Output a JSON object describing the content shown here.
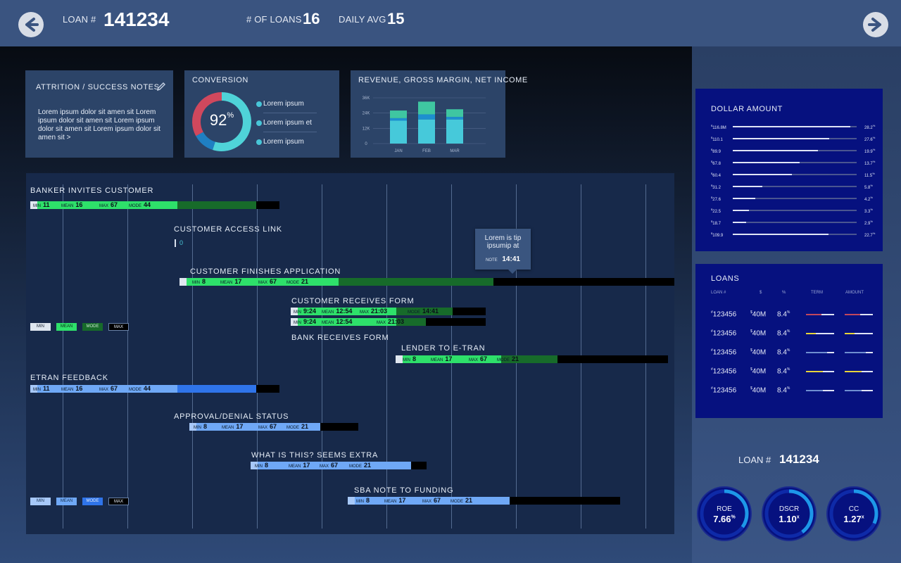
{
  "header": {
    "loan_label": "LOAN #",
    "loan_value": "141234",
    "num_loans_label": "# OF LOANS",
    "num_loans_value": "16",
    "daily_avg_label": "DAILY AVG",
    "daily_avg_value": "15"
  },
  "notes": {
    "title": "ATTRITION / SUCCESS NOTES",
    "text": "Lorem ipsum dolor sit amen sit Lorem ipsum dolor sit amen sit Lorem ipsum dolor sit amen sit Lorem ipsum dolor sit amen sit >"
  },
  "conversion": {
    "title": "CONVERSION",
    "value": "92",
    "unit": "%",
    "legend": [
      "Lorem ipsum",
      "Lorem ipsum et",
      "Lorem ipsum"
    ],
    "colors": [
      "#4fd3d8",
      "#1f7fc2",
      "#d0485d"
    ],
    "segments": [
      0.55,
      0.12,
      0.33
    ]
  },
  "revenue": {
    "title": "REVENUE, GROSS MARGIN, NET INCOME",
    "chart_data": {
      "type": "bar",
      "categories": [
        "JAN",
        "FEB",
        "MAR"
      ],
      "yticks": [
        "0",
        "12K",
        "24K",
        "36K"
      ],
      "ylim": [
        0,
        36
      ],
      "series": [
        {
          "values": [
            18,
            19,
            19
          ],
          "color": "#46c9da"
        },
        {
          "values": [
            2,
            4,
            2
          ],
          "color": "#1d8fcf"
        },
        {
          "values": [
            6,
            10,
            6
          ],
          "color": "#3fc6a1"
        }
      ]
    }
  },
  "gantt": {
    "stages": [
      {
        "title": "BANKER INVITES CUSTOMER",
        "theme": "green",
        "min": "11",
        "mean": "16",
        "max": "67",
        "mode": "44"
      },
      {
        "title": "CUSTOMER ACCESS LINK",
        "value": "0"
      },
      {
        "title": "CUSTOMER FINISHES APPLICATION",
        "theme": "green",
        "min": "8",
        "mean": "17",
        "max": "67",
        "mode": "21"
      },
      {
        "title": "CUSTOMER RECEIVES FORM",
        "theme": "green",
        "min": "9:24",
        "mean": "12:54",
        "max": "21:03",
        "mode": "14:41"
      },
      {
        "title": "BANK RECEIVES FORM",
        "theme": "green",
        "min": "9:24",
        "mean": "12:54",
        "max": "21:03"
      },
      {
        "title": "LENDER TO E-TRAN",
        "theme": "green",
        "min": "8",
        "mean": "17",
        "max": "67",
        "mode": "21"
      },
      {
        "title": "ETRAN FEEDBACK",
        "theme": "blue",
        "min": "11",
        "mean": "16",
        "max": "67",
        "mode": "44"
      },
      {
        "title": "APPROVAL/DENIAL STATUS",
        "theme": "blue",
        "min": "8",
        "mean": "17",
        "max": "67",
        "mode": "21"
      },
      {
        "title": "WHAT IS THIS? SEEMS EXTRA",
        "theme": "blue",
        "min": "8",
        "mean": "17",
        "max": "67",
        "mode": "21"
      },
      {
        "title": "SBA NOTE TO FUNDING",
        "theme": "blue",
        "min": "8",
        "mean": "17",
        "max": "67",
        "mode": "21"
      }
    ],
    "labels": {
      "min": "MIN",
      "mean": "MEAN",
      "max": "MAX",
      "mode": "MODE"
    },
    "legend_green": [
      "MIN",
      "MEAN",
      "MODE",
      "MAX"
    ],
    "legend_blue": [
      "MIN",
      "MEAN",
      "MODE",
      "MAX"
    ],
    "tooltip": {
      "text": "Lorem is tip ipsumip at",
      "note_label": "NOTE",
      "note_value": "14:41"
    }
  },
  "dollar_amount": {
    "title": "DOLLAR AMOUNT",
    "chart_data": {
      "type": "bar",
      "rows": [
        {
          "label": "116.8M",
          "pct": "28.2",
          "fill": 0.95
        },
        {
          "label": "110.1",
          "pct": "27.6",
          "fill": 0.78
        },
        {
          "label": "89.9",
          "pct": "19.9",
          "fill": 0.69
        },
        {
          "label": "67.8",
          "pct": "13.7",
          "fill": 0.54
        },
        {
          "label": "60.4",
          "pct": "11.5",
          "fill": 0.48
        },
        {
          "label": "31.2",
          "pct": "5.8",
          "fill": 0.24
        },
        {
          "label": "27.6",
          "pct": "4.2",
          "fill": 0.18
        },
        {
          "label": "22.5",
          "pct": "3.3",
          "fill": 0.13
        },
        {
          "label": "18.7",
          "pct": "2.9",
          "fill": 0.11
        },
        {
          "label": "109.9",
          "pct": "22.7",
          "fill": 0.77
        }
      ]
    }
  },
  "loans": {
    "title": "LOANS",
    "headers": [
      "LOAN #",
      "$",
      "%",
      "TERM",
      "AMOUNT"
    ],
    "rows": [
      {
        "loan": "123456",
        "amount": "40M",
        "pct": "8.4",
        "color": "#c0485e",
        "fill": 0.55
      },
      {
        "loan": "123456",
        "amount": "40M",
        "pct": "8.4",
        "color": "#e8d43a",
        "fill": 0.35
      },
      {
        "loan": "123456",
        "amount": "40M",
        "pct": "8.4",
        "color": "#6f8fd0",
        "fill": 0.75
      },
      {
        "loan": "123456",
        "amount": "40M",
        "pct": "8.4",
        "color": "#e8d43a",
        "fill": 0.6
      },
      {
        "loan": "123456",
        "amount": "40M",
        "pct": "8.4",
        "color": "#6f8fd0",
        "fill": 0.6
      }
    ]
  },
  "summary": {
    "loan_label": "LOAN #",
    "loan_value": "141234",
    "gauges": [
      {
        "label": "ROE",
        "value": "7.66",
        "unit": "%",
        "fill": 0.35
      },
      {
        "label": "DSCR",
        "value": "1.10",
        "unit": "x",
        "fill": 0.4
      },
      {
        "label": "CC",
        "value": "1.27",
        "unit": "x",
        "fill": 0.32
      }
    ]
  }
}
